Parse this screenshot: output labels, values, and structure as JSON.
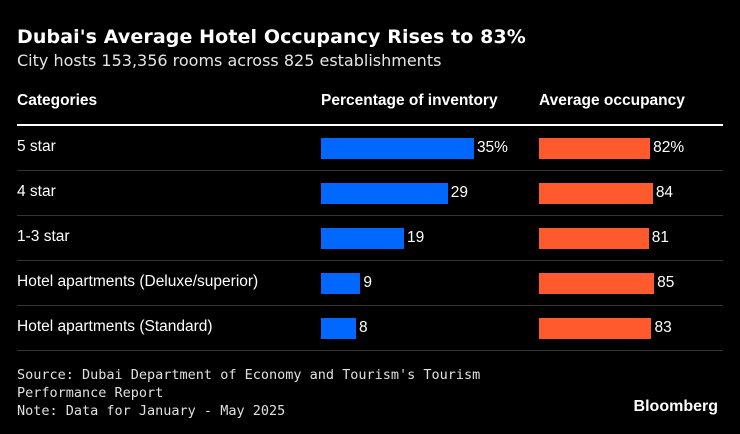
{
  "chart_data": {
    "type": "table",
    "title": "Dubai's Average Hotel Occupancy Rises to 83%",
    "subtitle": "City hosts 153,356 rooms across 825 establishments",
    "columns": [
      "Categories",
      "Percentage of inventory",
      "Average occupancy"
    ],
    "rows": [
      {
        "category": "5 star",
        "inventory": 35,
        "inventory_label": "35%",
        "occupancy": 82,
        "occupancy_label": "82%"
      },
      {
        "category": "4 star",
        "inventory": 29,
        "inventory_label": "29",
        "occupancy": 84,
        "occupancy_label": "84"
      },
      {
        "category": "1-3 star",
        "inventory": 19,
        "inventory_label": "19",
        "occupancy": 81,
        "occupancy_label": "81"
      },
      {
        "category": "Hotel apartments (Deluxe/superior)",
        "inventory": 9,
        "inventory_label": "9",
        "occupancy": 85,
        "occupancy_label": "85"
      },
      {
        "category": "Hotel apartments (Standard)",
        "inventory": 8,
        "inventory_label": "8",
        "occupancy": 83,
        "occupancy_label": "83"
      }
    ],
    "colors": {
      "inventory": "#0068ff",
      "occupancy": "#ff5a2d"
    }
  },
  "footer": {
    "source_line1": "Source: Dubai Department of Economy and Tourism's Tourism",
    "source_line2": "Performance Report",
    "note": "Note: Data for January - May 2025"
  },
  "brand": "Bloomberg"
}
